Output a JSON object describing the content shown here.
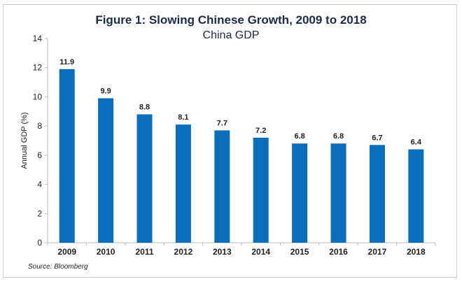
{
  "chart_data": {
    "type": "bar",
    "title": "Figure 1:  Slowing Chinese Growth, 2009 to 2018",
    "subtitle": "China GDP",
    "xlabel": "",
    "ylabel": "Annual GDP (%)",
    "categories": [
      "2009",
      "2010",
      "2011",
      "2012",
      "2013",
      "2014",
      "2015",
      "2016",
      "2017",
      "2018"
    ],
    "values": [
      11.9,
      9.9,
      8.8,
      8.1,
      7.7,
      7.2,
      6.8,
      6.8,
      6.7,
      6.4
    ],
    "data_labels": [
      "11.9",
      "9.9",
      "8.8",
      "8.1",
      "7.7",
      "7.2",
      "6.8",
      "6.8",
      "6.7",
      "6.4"
    ],
    "ylim": [
      0,
      14
    ],
    "yticks": [
      "0",
      "2",
      "4",
      "6",
      "8",
      "10",
      "12",
      "14"
    ],
    "grid": false,
    "bar_color": "#0a6ebd",
    "source": "Source: Bloomberg"
  }
}
